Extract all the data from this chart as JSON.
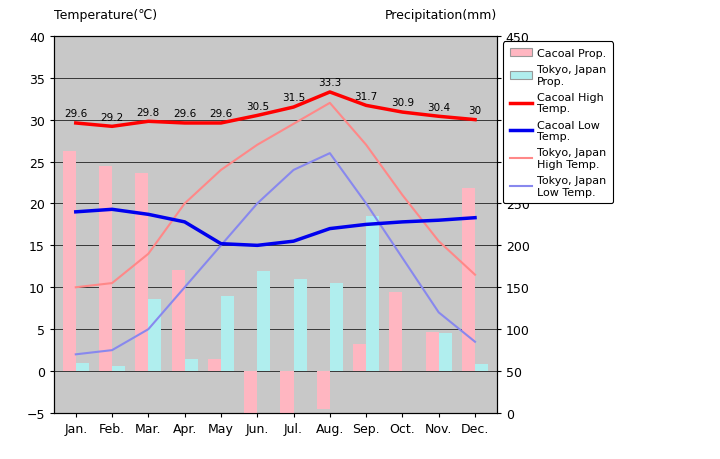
{
  "months": [
    "Jan.",
    "Feb.",
    "Mar.",
    "Apr.",
    "May",
    "Jun.",
    "Jul.",
    "Aug.",
    "Sep.",
    "Oct.",
    "Nov.",
    "Dec."
  ],
  "cacoal_precip": [
    26.3,
    24.5,
    23.6,
    12.1,
    1.5,
    -5.0,
    -5.5,
    -4.5,
    3.2,
    9.4,
    4.7,
    21.8
  ],
  "tokyo_precip": [
    1.0,
    0.6,
    8.6,
    1.4,
    9.0,
    12.0,
    11.0,
    10.5,
    18.5,
    0.0,
    4.5,
    0.8
  ],
  "cacoal_high": [
    29.6,
    29.2,
    29.8,
    29.6,
    29.6,
    30.5,
    31.5,
    33.3,
    31.7,
    30.9,
    30.4,
    30.0
  ],
  "cacoal_low": [
    19.0,
    19.3,
    18.7,
    17.8,
    15.2,
    15.0,
    15.5,
    17.0,
    17.5,
    17.8,
    18.0,
    18.3
  ],
  "tokyo_high": [
    10.0,
    10.5,
    14.0,
    20.0,
    24.0,
    27.0,
    29.5,
    32.0,
    27.0,
    21.0,
    15.5,
    11.5
  ],
  "tokyo_low": [
    2.0,
    2.5,
    5.0,
    10.0,
    15.0,
    20.0,
    24.0,
    26.0,
    20.0,
    13.5,
    7.0,
    3.5
  ],
  "cacoal_high_labels": [
    "29.6",
    "29.2",
    "29.8",
    "29.6",
    "29.6",
    "30.5",
    "31.5",
    "33.3",
    "31.7",
    "30.9",
    "30.4",
    "30"
  ],
  "bar_pink": "#FFB6C1",
  "bar_cyan": "#B0EEEE",
  "line_cacoal_high": "#FF0000",
  "line_cacoal_low": "#0000EE",
  "line_tokyo_high": "#FF8888",
  "line_tokyo_low": "#8888EE",
  "bg_gray": "#C8C8C8",
  "temp_min": -5,
  "temp_max": 40,
  "temp_yticks": [
    -5,
    0,
    5,
    10,
    15,
    20,
    25,
    30,
    35,
    40
  ],
  "precip_yticks": [
    0,
    50,
    100,
    150,
    200,
    250,
    300,
    350,
    400,
    450
  ],
  "precip_max": 450,
  "title_left": "Temperature(℃)",
  "title_right": "Precipitation(mm)",
  "legend_items": [
    {
      "label": "Cacoal Prop.",
      "type": "patch",
      "color": "#FFB6C1"
    },
    {
      "label": "Tokyo, Japan\nProp.",
      "type": "patch",
      "color": "#B0EEEE"
    },
    {
      "label": "Cacoal High\nTemp.",
      "type": "line",
      "color": "#FF0000",
      "lw": 2.5
    },
    {
      "label": "Cacoal Low\nTemp.",
      "type": "line",
      "color": "#0000EE",
      "lw": 2.5
    },
    {
      "label": "Tokyo, Japan\nHigh Temp.",
      "type": "line",
      "color": "#FF8888",
      "lw": 1.5
    },
    {
      "label": "Tokyo, Japan\nLow Temp.",
      "type": "line",
      "color": "#8888EE",
      "lw": 1.5
    }
  ]
}
